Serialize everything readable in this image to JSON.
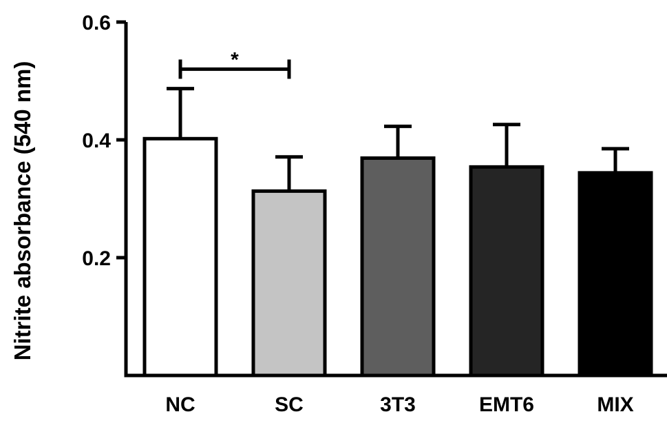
{
  "chart_data": {
    "type": "bar",
    "title": "",
    "xlabel": "",
    "ylabel": "Nitrite absorbance (540 nm)",
    "ylim": [
      0.0,
      0.6
    ],
    "yticks": [
      0.2,
      0.4,
      0.6
    ],
    "ytick_labels": [
      "0.2",
      "0.4",
      "0.6"
    ],
    "grid": false,
    "categories": [
      "NC",
      "SC",
      "3T3",
      "EMT6",
      "MIX"
    ],
    "values": [
      0.402,
      0.313,
      0.369,
      0.354,
      0.344
    ],
    "error_upper": [
      0.085,
      0.058,
      0.054,
      0.072,
      0.041
    ],
    "bar_colors": [
      "#ffffff",
      "#c4c4c4",
      "#5e5e5e",
      "#252525",
      "#000000"
    ],
    "edge_color": "#000000",
    "significance": [
      {
        "from": "NC",
        "to": "SC",
        "label": "*",
        "y": 0.52
      }
    ]
  }
}
